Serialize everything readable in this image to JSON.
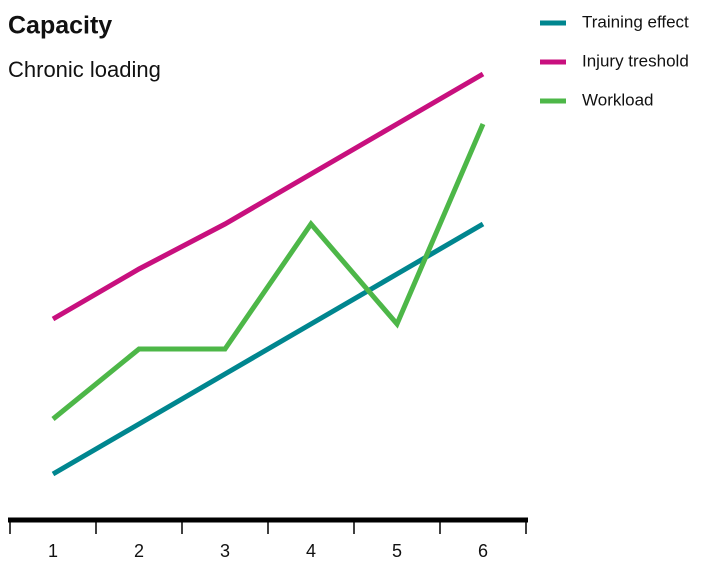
{
  "chart_data": {
    "type": "line",
    "title": "Capacity",
    "subtitle": "Chronic loading",
    "categories": [
      "1",
      "2",
      "3",
      "4",
      "5",
      "6"
    ],
    "series": [
      {
        "name": "Training effect",
        "color": "#00868f",
        "values": [
          1,
          2,
          3,
          4,
          5,
          6
        ]
      },
      {
        "name": "Injury treshold",
        "color": "#c8107e",
        "values": [
          4.1,
          5.1,
          6.0,
          7.0,
          8.0,
          9.0
        ]
      },
      {
        "name": "Workload",
        "color": "#4db748",
        "values": [
          2.1,
          3.5,
          3.5,
          6.0,
          4.0,
          8.0
        ]
      }
    ],
    "ylim": [
      0,
      10
    ]
  }
}
